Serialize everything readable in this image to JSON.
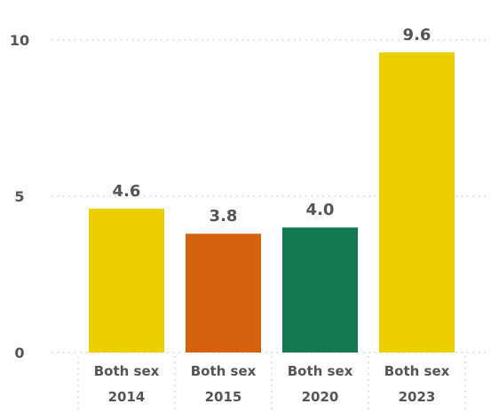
{
  "chart_data": {
    "type": "bar",
    "categories": [
      [
        "Both sex",
        "2014"
      ],
      [
        "Both sex",
        "2015"
      ],
      [
        "Both sex",
        "2020"
      ],
      [
        "Both sex",
        "2023"
      ]
    ],
    "values": [
      4.6,
      3.8,
      4.0,
      9.6
    ],
    "data_labels": [
      "4.6",
      "3.8",
      "4.0",
      "9.6"
    ],
    "bar_colors": [
      "#EBCF00",
      "#D4610B",
      "#137A50",
      "#EBCF00"
    ],
    "y_ticks": [
      0,
      5,
      10
    ],
    "ylim": [
      0,
      10
    ],
    "title": "",
    "xlabel": "",
    "ylabel": "",
    "grid": true,
    "legend": "none"
  }
}
